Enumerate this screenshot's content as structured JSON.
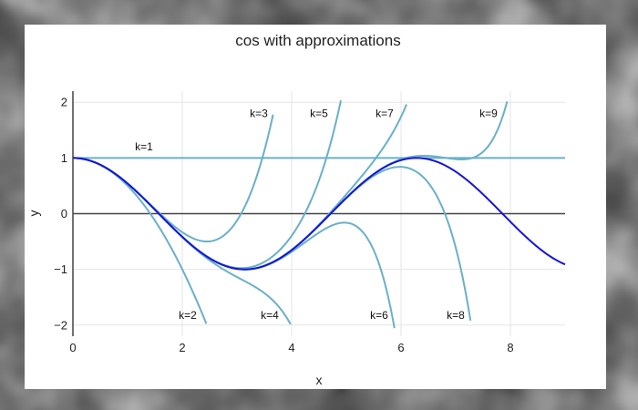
{
  "colors": {
    "background_outer": "#3a3a3a",
    "plot_background": "#ffffff",
    "grid": "#e6e6e6",
    "zero_line": "#444444",
    "approx_line": "#6ab0c8",
    "cos_line": "#1515d8"
  },
  "chart_data": {
    "type": "line",
    "title": "cos with approximations",
    "xlabel": "x",
    "ylabel": "y",
    "xlim": [
      0,
      9
    ],
    "ylim": [
      -2.2,
      2.2
    ],
    "xticks": [
      {
        "value": 0,
        "label": "0"
      },
      {
        "value": 2,
        "label": "2"
      },
      {
        "value": 4,
        "label": "4"
      },
      {
        "value": 6,
        "label": "6"
      },
      {
        "value": 8,
        "label": "8"
      }
    ],
    "yticks": [
      {
        "value": -2,
        "label": "−2"
      },
      {
        "value": -1,
        "label": "−1"
      },
      {
        "value": 0,
        "label": "0"
      },
      {
        "value": 1,
        "label": "1"
      },
      {
        "value": 2,
        "label": "2"
      }
    ],
    "grid": true,
    "legend": "none",
    "main_series": {
      "function": "cos",
      "x_range": [
        0,
        9
      ]
    },
    "approximations": [
      {
        "k": 1,
        "x_max": 9
      },
      {
        "k": 2,
        "x_max": 2.44
      },
      {
        "k": 3,
        "x_max": 3.66
      },
      {
        "k": 4,
        "x_max": 3.98
      },
      {
        "k": 5,
        "x_max": 4.9
      },
      {
        "k": 6,
        "x_max": 5.88
      },
      {
        "k": 7,
        "x_max": 6.1
      },
      {
        "k": 8,
        "x_max": 7.27
      },
      {
        "k": 9,
        "x_max": 7.94
      }
    ],
    "annotations": [
      {
        "text": "k=1",
        "x": 1.3,
        "y": 1.2
      },
      {
        "text": "k=2",
        "x": 2.1,
        "y": -1.82
      },
      {
        "text": "k=3",
        "x": 3.4,
        "y": 1.8
      },
      {
        "text": "k=4",
        "x": 3.6,
        "y": -1.82
      },
      {
        "text": "k=5",
        "x": 4.5,
        "y": 1.8
      },
      {
        "text": "k=6",
        "x": 5.6,
        "y": -1.82
      },
      {
        "text": "k=7",
        "x": 5.7,
        "y": 1.8
      },
      {
        "text": "k=8",
        "x": 7.0,
        "y": -1.82
      },
      {
        "text": "k=9",
        "x": 7.6,
        "y": 1.8
      }
    ]
  }
}
